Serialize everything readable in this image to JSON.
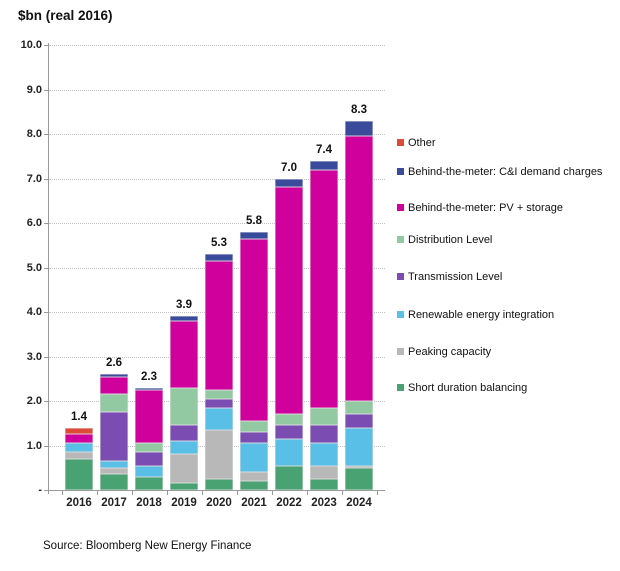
{
  "chart_data": {
    "type": "bar",
    "stacked": true,
    "title": "$bn (real 2016)",
    "source": "Source: Bloomberg New Energy Finance",
    "categories": [
      "2016",
      "2017",
      "2018",
      "2019",
      "2020",
      "2021",
      "2022",
      "2023",
      "2024"
    ],
    "totals": [
      "1.4",
      "2.6",
      "2.3",
      "3.9",
      "5.3",
      "5.8",
      "7.0",
      "7.4",
      "8.3"
    ],
    "ylim": [
      0,
      10
    ],
    "yticks": [
      "10.0",
      "9.0",
      "8.0",
      "7.0",
      "6.0",
      "5.0",
      "4.0",
      "3.0",
      "2.0",
      "1.0",
      "-"
    ],
    "grid": "horizontal-dotted",
    "legend_position": "right",
    "series": [
      {
        "name": "Other",
        "color": "#DC4A38",
        "values": [
          0.15,
          0,
          0,
          0,
          0,
          0,
          0,
          0,
          0
        ]
      },
      {
        "name": "Behind-the-meter: C&I demand charges",
        "color": "#3A4B9C",
        "values": [
          0,
          0.05,
          0.05,
          0.1,
          0.15,
          0.15,
          0.2,
          0.2,
          0.35
        ]
      },
      {
        "name": "Behind-the-meter: PV + storage",
        "color": "#D0009C",
        "values": [
          0.2,
          0.4,
          1.2,
          1.5,
          2.9,
          4.1,
          5.1,
          5.35,
          5.95
        ]
      },
      {
        "name": "Distribution Level",
        "color": "#92C8A2",
        "values": [
          0,
          0.4,
          0.2,
          0.85,
          0.2,
          0.25,
          0.25,
          0.4,
          0.3
        ]
      },
      {
        "name": "Transmission Level",
        "color": "#7B4DB3",
        "values": [
          0,
          1.1,
          0.3,
          0.35,
          0.2,
          0.25,
          0.3,
          0.4,
          0.3
        ]
      },
      {
        "name": "Renewable energy integration",
        "color": "#5ABFE7",
        "values": [
          0.2,
          0.15,
          0.25,
          0.3,
          0.5,
          0.65,
          0.6,
          0.5,
          0.85
        ]
      },
      {
        "name": "Peaking capacity",
        "color": "#B8B8B8",
        "values": [
          0.15,
          0.15,
          0,
          0.65,
          1.1,
          0.2,
          0,
          0.3,
          0.05
        ]
      },
      {
        "name": "Short duration balancing",
        "color": "#48A271",
        "values": [
          0.7,
          0.35,
          0.3,
          0.15,
          0.25,
          0.2,
          0.55,
          0.25,
          0.5
        ]
      }
    ]
  }
}
